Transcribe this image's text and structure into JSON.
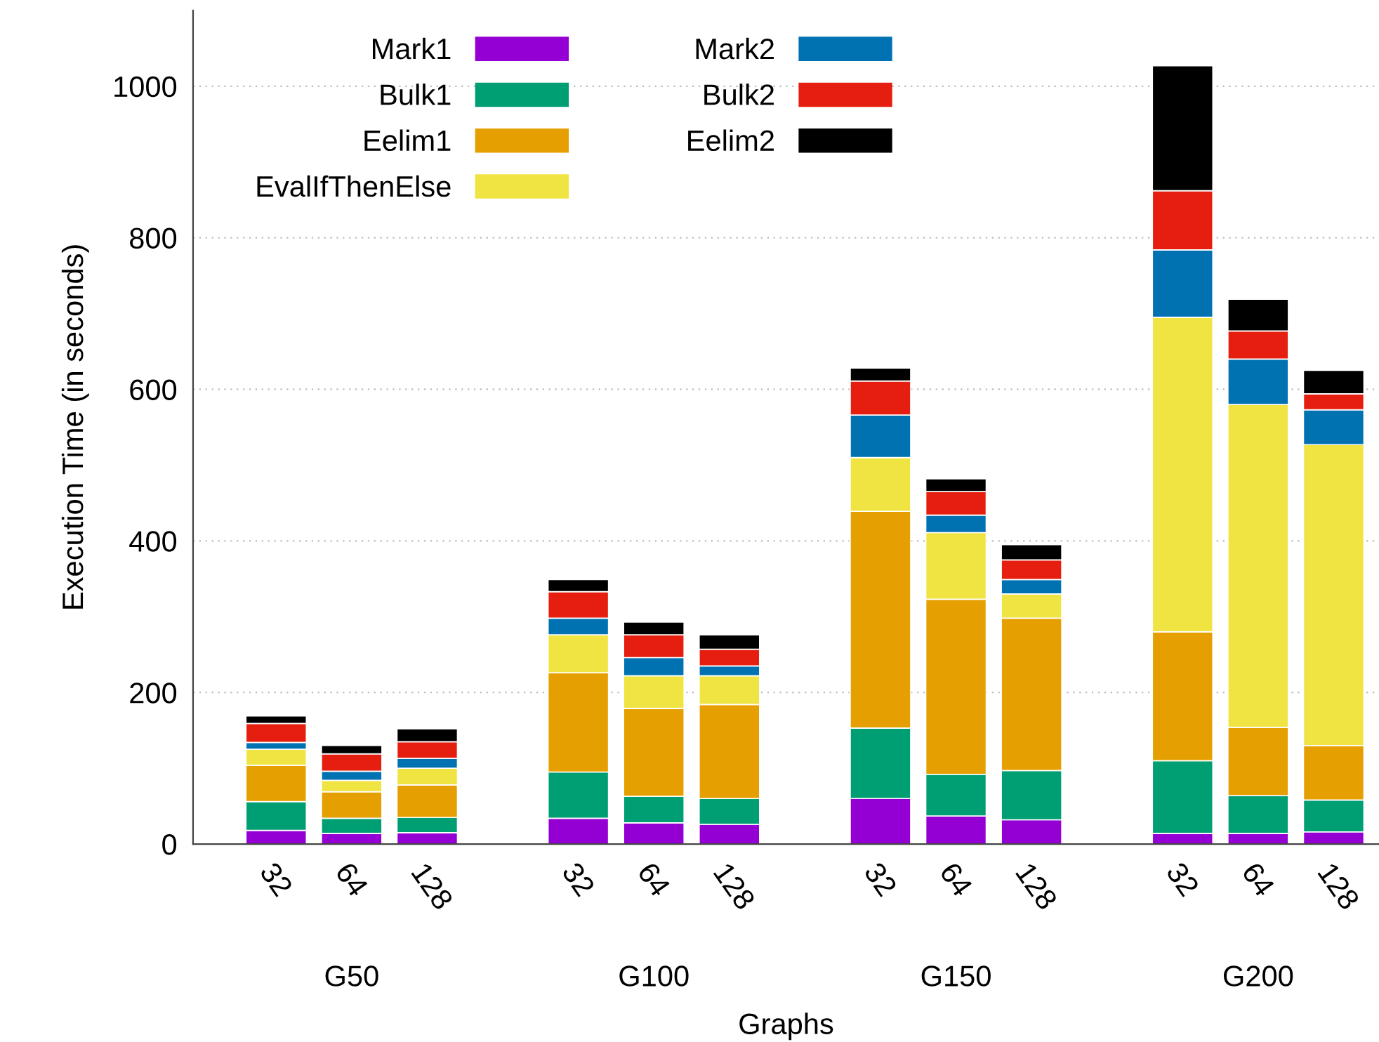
{
  "chart_data": {
    "type": "bar",
    "stacked": true,
    "xlabel": "Graphs",
    "ylabel": "Execution Time (in seconds)",
    "categories": [
      "32",
      "64",
      "128",
      "32",
      "64",
      "128",
      "32",
      "64",
      "128",
      "32",
      "64",
      "128"
    ],
    "annotations": [
      "G50",
      "G100",
      "G150",
      "G200"
    ],
    "series": [
      {
        "name": "Mark1",
        "color": "#9400d3",
        "values": [
          18,
          14,
          15,
          34,
          28,
          26,
          60,
          37,
          32,
          14,
          14,
          16
        ]
      },
      {
        "name": "Bulk1",
        "color": "#009e73",
        "values": [
          38,
          20,
          20,
          61,
          35,
          34,
          93,
          55,
          65,
          96,
          50,
          42
        ]
      },
      {
        "name": "Eelim1",
        "color": "#e69f00",
        "values": [
          48,
          35,
          43,
          131,
          116,
          124,
          286,
          231,
          201,
          170,
          90,
          72
        ]
      },
      {
        "name": "EvalIfThenElse",
        "color": "#f0e442",
        "values": [
          21,
          15,
          22,
          50,
          43,
          38,
          71,
          88,
          32,
          415,
          426,
          397
        ]
      },
      {
        "name": "Mark2",
        "color": "#0072b2",
        "values": [
          9,
          12,
          13,
          22,
          24,
          13,
          56,
          23,
          19,
          89,
          60,
          46
        ]
      },
      {
        "name": "Bulk2",
        "color": "#e51e10",
        "values": [
          25,
          23,
          22,
          35,
          30,
          22,
          45,
          31,
          26,
          78,
          37,
          21
        ]
      },
      {
        "name": "Eelim2",
        "color": "#000000",
        "values": [
          10,
          11,
          17,
          16,
          17,
          19,
          17,
          17,
          20,
          165,
          42,
          31
        ]
      }
    ],
    "ylim": [
      0,
      1100
    ],
    "yticks": [
      0,
      200,
      400,
      600,
      800,
      1000
    ],
    "grid": "y",
    "legend": "top left"
  }
}
